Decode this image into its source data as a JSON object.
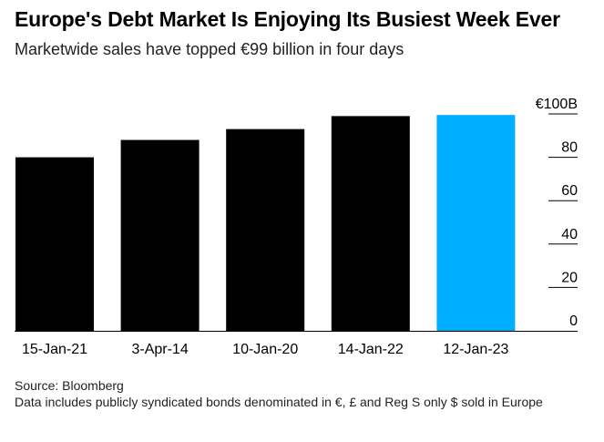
{
  "chart_data": {
    "type": "bar",
    "title": "Europe's Debt Market Is Enjoying Its Busiest Week Ever",
    "subtitle": "Marketwide sales have topped €99 billion in four days",
    "categories": [
      "15-Jan-21",
      "3-Apr-14",
      "10-Jan-20",
      "14-Jan-22",
      "12-Jan-23"
    ],
    "values": [
      80,
      88,
      93,
      99,
      99.5
    ],
    "highlight_index": 4,
    "colors": {
      "default": "#000000",
      "highlight": "#00aeff"
    },
    "ylim": [
      0,
      100
    ],
    "yticks": [
      0,
      20,
      40,
      60,
      80,
      100
    ],
    "ytick_labels": [
      "0",
      "20",
      "40",
      "60",
      "80",
      "€100B"
    ],
    "xlabel": "",
    "ylabel": ""
  },
  "footer": {
    "source": "Source: Bloomberg",
    "note": "Data includes publicly syndicated bonds denominated in €, £ and Reg S only $ sold in Europe"
  }
}
